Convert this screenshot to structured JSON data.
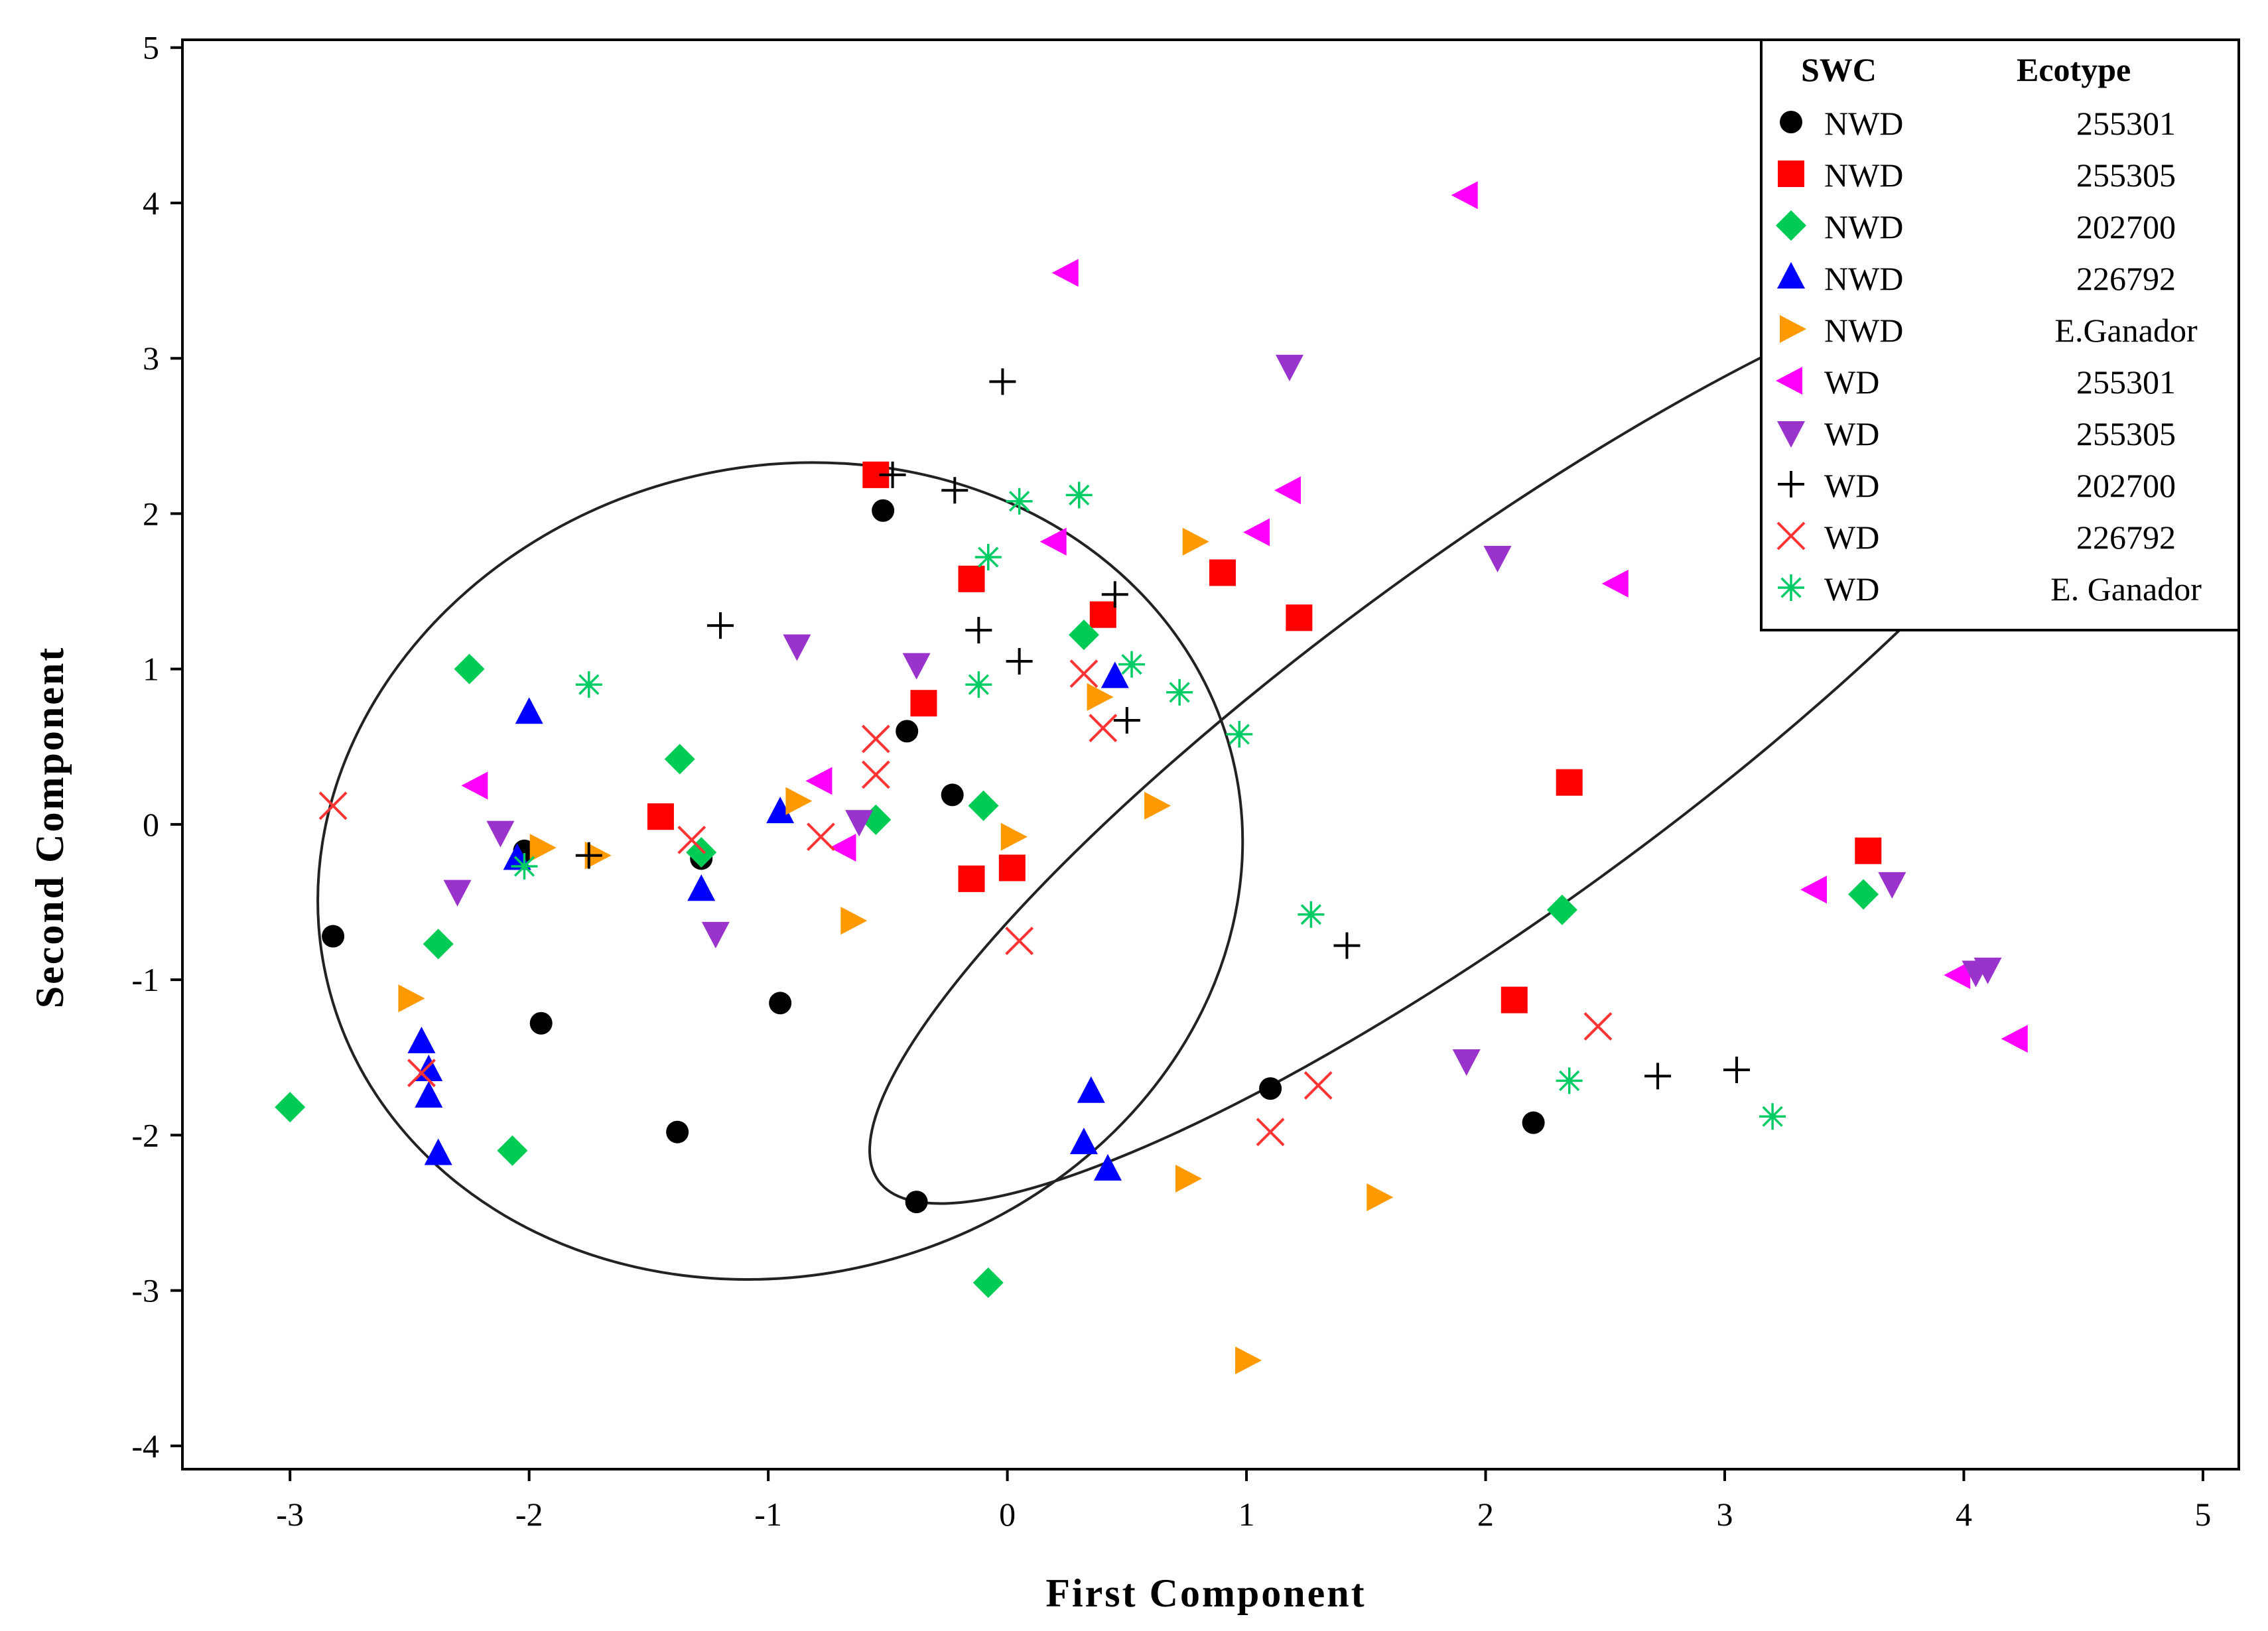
{
  "chart_data": {
    "type": "scatter",
    "xlabel": "First Component",
    "ylabel": "Second Component",
    "xlim": [
      -3.45,
      5.15
    ],
    "ylim": [
      -4.15,
      5.05
    ],
    "xticks": [
      "-3",
      "-2",
      "-1",
      "0",
      "1",
      "2",
      "3",
      "4",
      "5"
    ],
    "yticks": [
      "-4",
      "-3",
      "-2",
      "-1",
      "0",
      "1",
      "2",
      "3",
      "4",
      "5"
    ],
    "legend": {
      "position": "top-right",
      "header_swc": "SWC",
      "header_ecotype": "Ecotype"
    },
    "ellipses": [
      {
        "name": "NWD-ellipse",
        "cx": -0.95,
        "cy": -0.3,
        "rx": 1.95,
        "ry": 2.6,
        "angle_deg": -15
      },
      {
        "name": "WD-ellipse",
        "cx": 2.05,
        "cy": 0.6,
        "rx": 3.2,
        "ry": 1.15,
        "angle_deg": -36
      }
    ],
    "series": [
      {
        "name": "NWD 255301",
        "swc": "NWD",
        "ecotype": "255301",
        "marker": "circle",
        "color": "#000000",
        "points": [
          [
            -2.82,
            -0.72
          ],
          [
            -2.02,
            -0.17
          ],
          [
            -1.95,
            -1.28
          ],
          [
            -1.38,
            -1.98
          ],
          [
            -1.28,
            -0.22
          ],
          [
            -0.95,
            -1.15
          ],
          [
            -0.52,
            2.02
          ],
          [
            -0.42,
            0.6
          ],
          [
            -0.38,
            -2.43
          ],
          [
            -0.23,
            0.19
          ],
          [
            1.1,
            -1.7
          ],
          [
            2.2,
            -1.92
          ]
        ]
      },
      {
        "name": "NWD 255305",
        "swc": "NWD",
        "ecotype": "255305",
        "marker": "square",
        "color": "#ff0000",
        "points": [
          [
            -0.55,
            2.25
          ],
          [
            -0.35,
            0.78
          ],
          [
            -0.15,
            1.58
          ],
          [
            -0.15,
            -0.35
          ],
          [
            0.02,
            -0.28
          ],
          [
            0.4,
            1.35
          ],
          [
            0.9,
            1.62
          ],
          [
            1.22,
            1.33
          ],
          [
            2.12,
            -1.13
          ],
          [
            2.35,
            0.27
          ],
          [
            3.6,
            -0.17
          ],
          [
            -1.45,
            0.05
          ]
        ]
      },
      {
        "name": "NWD 202700",
        "swc": "NWD",
        "ecotype": "202700",
        "marker": "diamond",
        "color": "#00cc55",
        "points": [
          [
            -3.0,
            -1.82
          ],
          [
            -2.25,
            1.0
          ],
          [
            -2.38,
            -0.77
          ],
          [
            -2.07,
            -2.1
          ],
          [
            -1.37,
            0.42
          ],
          [
            -1.28,
            -0.18
          ],
          [
            -0.55,
            0.03
          ],
          [
            -0.1,
            0.12
          ],
          [
            -0.08,
            -2.95
          ],
          [
            0.32,
            1.22
          ],
          [
            2.32,
            -0.55
          ],
          [
            3.58,
            -0.45
          ]
        ]
      },
      {
        "name": "NWD 226792",
        "swc": "NWD",
        "ecotype": "226792",
        "marker": "triangle-up",
        "color": "#0000ff",
        "points": [
          [
            -2.0,
            0.72
          ],
          [
            -2.05,
            -0.22
          ],
          [
            -2.45,
            -1.4
          ],
          [
            -2.42,
            -1.58
          ],
          [
            -2.42,
            -1.75
          ],
          [
            -2.38,
            -2.12
          ],
          [
            -1.28,
            -0.42
          ],
          [
            -0.95,
            0.08
          ],
          [
            0.32,
            -2.05
          ],
          [
            0.35,
            -1.72
          ],
          [
            0.42,
            -2.22
          ],
          [
            0.45,
            0.95
          ]
        ]
      },
      {
        "name": "NWD E.Ganador",
        "swc": "NWD",
        "ecotype": "E.Ganador",
        "marker": "triangle-right",
        "color": "#ff9900",
        "points": [
          [
            -2.5,
            -1.12
          ],
          [
            -1.95,
            -0.15
          ],
          [
            -1.72,
            -0.2
          ],
          [
            -0.88,
            0.15
          ],
          [
            -0.65,
            -0.62
          ],
          [
            0.02,
            -0.08
          ],
          [
            0.38,
            0.82
          ],
          [
            0.62,
            0.12
          ],
          [
            0.78,
            1.82
          ],
          [
            0.75,
            -2.28
          ],
          [
            1.55,
            -2.4
          ],
          [
            1.0,
            -3.45
          ]
        ]
      },
      {
        "name": "WD 255301",
        "swc": "WD",
        "ecotype": "255301",
        "marker": "triangle-left",
        "color": "#ff00ff",
        "points": [
          [
            -2.22,
            0.25
          ],
          [
            -0.78,
            0.28
          ],
          [
            -0.68,
            -0.15
          ],
          [
            0.2,
            1.82
          ],
          [
            0.25,
            3.55
          ],
          [
            1.05,
            1.88
          ],
          [
            1.18,
            2.15
          ],
          [
            1.92,
            4.05
          ],
          [
            2.55,
            1.55
          ],
          [
            3.38,
            -0.42
          ],
          [
            3.98,
            -0.97
          ],
          [
            4.22,
            -1.38
          ]
        ]
      },
      {
        "name": "WD 255305",
        "swc": "WD",
        "ecotype": "255305",
        "marker": "triangle-down",
        "color": "#9933cc",
        "points": [
          [
            -2.3,
            -0.43
          ],
          [
            -2.12,
            -0.05
          ],
          [
            -1.22,
            -0.7
          ],
          [
            -0.88,
            1.15
          ],
          [
            -0.62,
            0.02
          ],
          [
            -0.38,
            1.03
          ],
          [
            1.18,
            2.95
          ],
          [
            1.92,
            -1.52
          ],
          [
            2.05,
            1.72
          ],
          [
            3.7,
            -0.38
          ],
          [
            4.05,
            -0.95
          ],
          [
            4.1,
            -0.93
          ]
        ]
      },
      {
        "name": "WD 202700",
        "swc": "WD",
        "ecotype": "202700",
        "marker": "plus",
        "color": "#000000",
        "points": [
          [
            -1.75,
            -0.2
          ],
          [
            -1.2,
            1.28
          ],
          [
            -0.48,
            2.25
          ],
          [
            -0.22,
            2.15
          ],
          [
            -0.12,
            1.25
          ],
          [
            -0.02,
            2.85
          ],
          [
            0.05,
            1.05
          ],
          [
            0.45,
            1.48
          ],
          [
            0.5,
            0.67
          ],
          [
            1.42,
            -0.78
          ],
          [
            2.72,
            -1.62
          ],
          [
            3.05,
            -1.58
          ]
        ]
      },
      {
        "name": "WD 226792",
        "swc": "WD",
        "ecotype": "226792",
        "marker": "x",
        "color": "#ff3333",
        "points": [
          [
            -2.82,
            0.12
          ],
          [
            -2.45,
            -1.6
          ],
          [
            -1.32,
            -0.1
          ],
          [
            -0.78,
            -0.08
          ],
          [
            -0.55,
            0.32
          ],
          [
            -0.55,
            0.55
          ],
          [
            0.05,
            -0.75
          ],
          [
            0.32,
            0.97
          ],
          [
            0.4,
            0.62
          ],
          [
            1.1,
            -1.98
          ],
          [
            1.3,
            -1.68
          ],
          [
            2.47,
            -1.3
          ]
        ]
      },
      {
        "name": "WD E. Ganador",
        "swc": "WD",
        "ecotype": "E. Ganador",
        "marker": "asterisk",
        "color": "#00cc66",
        "points": [
          [
            -1.75,
            0.9
          ],
          [
            -2.02,
            -0.27
          ],
          [
            -0.12,
            0.9
          ],
          [
            -0.08,
            1.72
          ],
          [
            0.05,
            2.08
          ],
          [
            0.3,
            2.12
          ],
          [
            0.52,
            1.03
          ],
          [
            0.72,
            0.85
          ],
          [
            0.97,
            0.58
          ],
          [
            1.27,
            -0.58
          ],
          [
            2.35,
            -1.65
          ],
          [
            3.2,
            -1.88
          ]
        ]
      }
    ]
  }
}
